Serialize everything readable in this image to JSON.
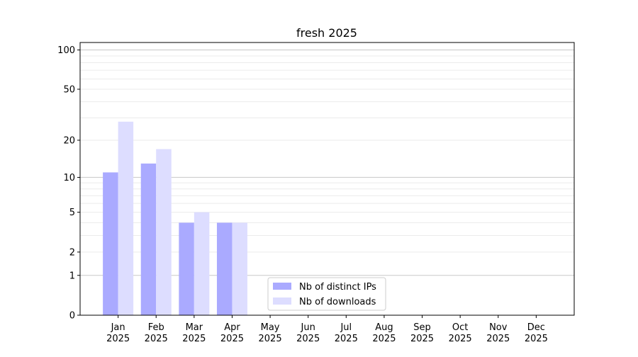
{
  "chart_data": {
    "type": "bar",
    "title": "fresh 2025",
    "xlabel": "",
    "ylabel": "",
    "y_scale": "log(1+y)",
    "ylim": [
      0,
      114
    ],
    "yticks": [
      0,
      1,
      2,
      5,
      10,
      20,
      50,
      100
    ],
    "grid": "horizontal, major and minor",
    "legend_position": "bottom-center",
    "categories": [
      "Jan\n2025",
      "Feb\n2025",
      "Mar\n2025",
      "Apr\n2025",
      "May\n2025",
      "Jun\n2025",
      "Jul\n2025",
      "Aug\n2025",
      "Sep\n2025",
      "Oct\n2025",
      "Nov\n2025",
      "Dec\n2025"
    ],
    "series": [
      {
        "name": "Nb of distinct IPs",
        "color": "#aaaaff",
        "values": [
          11,
          13,
          4,
          4,
          0,
          0,
          0,
          0,
          0,
          0,
          0,
          0
        ]
      },
      {
        "name": "Nb of downloads",
        "color": "#ddddff",
        "values": [
          28,
          17,
          5,
          4,
          0,
          0,
          0,
          0,
          0,
          0,
          0,
          0
        ]
      }
    ]
  }
}
